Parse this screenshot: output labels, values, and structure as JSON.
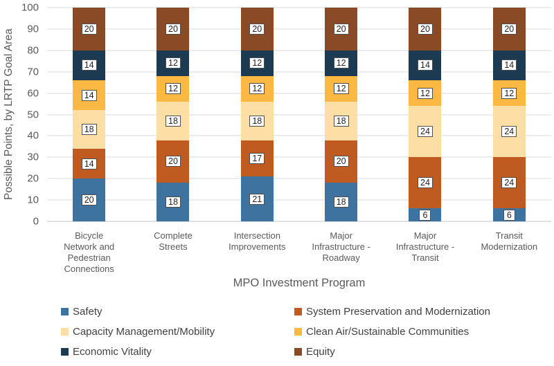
{
  "chart_data": {
    "type": "bar",
    "stacked": true,
    "title": "",
    "xlabel": "MPO Investment Program",
    "ylabel": "Possible Points, by LRTP Goal Area",
    "ylim": [
      0,
      100
    ],
    "ytick_step": 10,
    "grid": true,
    "legend_position": "bottom",
    "categories": [
      "Bicycle\nNetwork and\nPedestrian\nConnections",
      "Complete\nStreets",
      "Intersection\nImprovements",
      "Major\nInfrastructure -\nRoadway",
      "Major\nInfrastructure -\nTransit",
      "Transit\nModernization"
    ],
    "series": [
      {
        "name": "Safety",
        "color": "#3D739E",
        "values": [
          20,
          18,
          21,
          18,
          6,
          6
        ]
      },
      {
        "name": "System Preservation and Modernization",
        "color": "#BF5B20",
        "values": [
          14,
          20,
          17,
          20,
          24,
          24
        ]
      },
      {
        "name": "Capacity Management/Mobility",
        "color": "#FDDFA6",
        "values": [
          18,
          18,
          18,
          18,
          24,
          24
        ]
      },
      {
        "name": "Clean Air/Sustainable Communities",
        "color": "#FBB843",
        "values": [
          14,
          12,
          12,
          12,
          12,
          12
        ]
      },
      {
        "name": "Economic Vitality",
        "color": "#1C3A52",
        "values": [
          14,
          12,
          12,
          12,
          14,
          14
        ]
      },
      {
        "name": "Equity",
        "color": "#8A4A26",
        "values": [
          20,
          20,
          20,
          20,
          20,
          20
        ]
      }
    ],
    "colors": {
      "gridline": "#D9D9D9",
      "axis_text": "#595959",
      "legend_text": "#3F3F3F",
      "data_label_text": "#1F1F1F",
      "data_label_border": "#4D4D4D",
      "background": "#FFFFFF"
    }
  }
}
